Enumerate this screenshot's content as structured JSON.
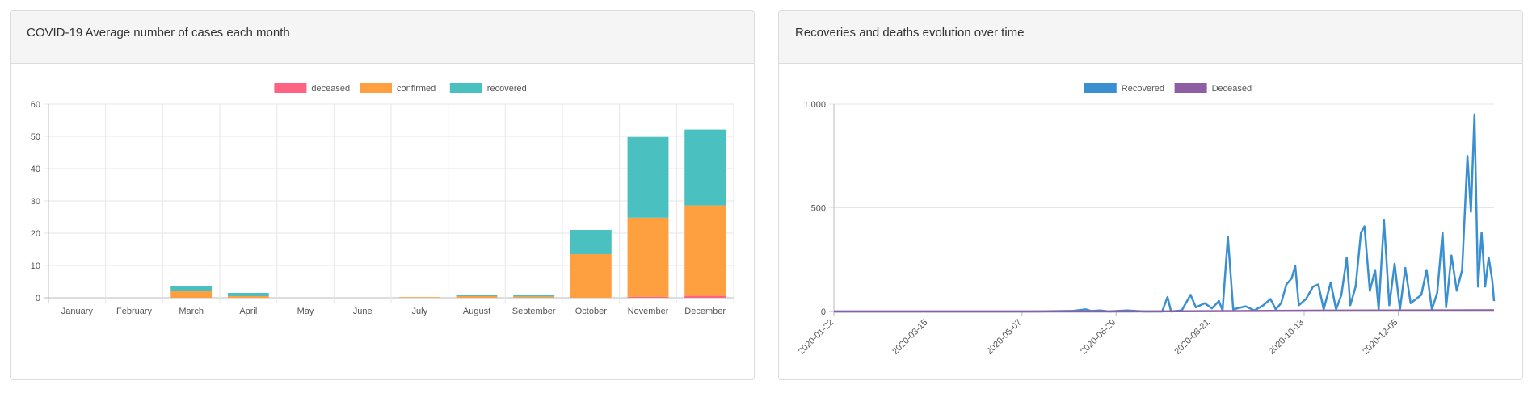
{
  "left_card": {
    "title": "COVID-19 Average number of cases each month"
  },
  "right_card": {
    "title": "Recoveries and deaths evolution over time"
  },
  "chart_data": [
    {
      "type": "bar",
      "stacked": true,
      "categories": [
        "January",
        "February",
        "March",
        "April",
        "May",
        "June",
        "July",
        "August",
        "September",
        "October",
        "November",
        "December"
      ],
      "series": [
        {
          "name": "deceased",
          "color": "#ff6384",
          "values": [
            0,
            0,
            0,
            0,
            0,
            0,
            0,
            0,
            0,
            0,
            0.3,
            0.6
          ]
        },
        {
          "name": "confirmed",
          "color": "#ffa040",
          "values": [
            0,
            0,
            2,
            0.5,
            0,
            0,
            0.2,
            0.5,
            0.4,
            13.5,
            24.5,
            28
          ]
        },
        {
          "name": "recovered",
          "color": "#4bc0c0",
          "values": [
            0,
            0,
            1.5,
            1,
            0,
            0,
            0,
            0.5,
            0.5,
            7.5,
            25,
            23.5
          ]
        }
      ],
      "ylim": [
        0,
        60
      ],
      "yticks": [
        0,
        10,
        20,
        30,
        40,
        50,
        60
      ],
      "legend": "top",
      "grid": true
    },
    {
      "type": "line",
      "x_dates": [
        "2020-01-22",
        "2020-03-15",
        "2020-05-07",
        "2020-06-29",
        "2020-08-21",
        "2020-10-13",
        "2020-12-05"
      ],
      "x_tick_labels": [
        "2020-01-22",
        "2020-03-15",
        "2020-05-07",
        "2020-06-29",
        "2020-08-21",
        "2020-10-13",
        "2020-12-05"
      ],
      "x_range": [
        "2020-01-22",
        "2021-01-28"
      ],
      "ylim": [
        0,
        1000
      ],
      "yticks": [
        0,
        500,
        1000
      ],
      "ytick_labels": [
        "0",
        "500",
        "1,000"
      ],
      "legend": "top",
      "grid": true,
      "series": [
        {
          "name": "Recovered",
          "color": "#3a8fd0",
          "points": [
            [
              "2020-01-22",
              0
            ],
            [
              "2020-05-15",
              0
            ],
            [
              "2020-06-05",
              3
            ],
            [
              "2020-06-12",
              10
            ],
            [
              "2020-06-15",
              2
            ],
            [
              "2020-06-20",
              5
            ],
            [
              "2020-06-25",
              0
            ],
            [
              "2020-07-05",
              5
            ],
            [
              "2020-07-15",
              0
            ],
            [
              "2020-07-25",
              0
            ],
            [
              "2020-07-28",
              70
            ],
            [
              "2020-07-30",
              0
            ],
            [
              "2020-08-05",
              5
            ],
            [
              "2020-08-10",
              80
            ],
            [
              "2020-08-13",
              20
            ],
            [
              "2020-08-18",
              40
            ],
            [
              "2020-08-22",
              15
            ],
            [
              "2020-08-26",
              50
            ],
            [
              "2020-08-28",
              5
            ],
            [
              "2020-08-31",
              360
            ],
            [
              "2020-09-03",
              10
            ],
            [
              "2020-09-10",
              25
            ],
            [
              "2020-09-15",
              5
            ],
            [
              "2020-09-20",
              30
            ],
            [
              "2020-09-24",
              60
            ],
            [
              "2020-09-27",
              10
            ],
            [
              "2020-09-30",
              40
            ],
            [
              "2020-10-03",
              130
            ],
            [
              "2020-10-06",
              160
            ],
            [
              "2020-10-08",
              220
            ],
            [
              "2020-10-10",
              30
            ],
            [
              "2020-10-14",
              60
            ],
            [
              "2020-10-18",
              120
            ],
            [
              "2020-10-21",
              130
            ],
            [
              "2020-10-24",
              10
            ],
            [
              "2020-10-28",
              140
            ],
            [
              "2020-10-31",
              10
            ],
            [
              "2020-11-03",
              80
            ],
            [
              "2020-11-06",
              260
            ],
            [
              "2020-11-08",
              30
            ],
            [
              "2020-11-11",
              120
            ],
            [
              "2020-11-14",
              380
            ],
            [
              "2020-11-16",
              410
            ],
            [
              "2020-11-19",
              100
            ],
            [
              "2020-11-22",
              200
            ],
            [
              "2020-11-24",
              10
            ],
            [
              "2020-11-27",
              440
            ],
            [
              "2020-11-30",
              30
            ],
            [
              "2020-12-03",
              230
            ],
            [
              "2020-12-06",
              10
            ],
            [
              "2020-12-09",
              210
            ],
            [
              "2020-12-12",
              40
            ],
            [
              "2020-12-15",
              60
            ],
            [
              "2020-12-18",
              80
            ],
            [
              "2020-12-21",
              200
            ],
            [
              "2020-12-24",
              10
            ],
            [
              "2020-12-27",
              90
            ],
            [
              "2020-12-30",
              380
            ],
            [
              "2021-01-01",
              20
            ],
            [
              "2021-01-04",
              270
            ],
            [
              "2021-01-07",
              100
            ],
            [
              "2021-01-10",
              200
            ],
            [
              "2021-01-13",
              750
            ],
            [
              "2021-01-15",
              480
            ],
            [
              "2021-01-17",
              950
            ],
            [
              "2021-01-19",
              120
            ],
            [
              "2021-01-21",
              380
            ],
            [
              "2021-01-23",
              120
            ],
            [
              "2021-01-25",
              260
            ],
            [
              "2021-01-27",
              150
            ],
            [
              "2021-01-28",
              50
            ]
          ]
        },
        {
          "name": "Deceased",
          "color": "#8e5ea2",
          "points": [
            [
              "2020-01-22",
              0
            ],
            [
              "2020-07-01",
              0
            ],
            [
              "2020-09-01",
              2
            ],
            [
              "2020-10-15",
              4
            ],
            [
              "2020-12-01",
              5
            ],
            [
              "2021-01-28",
              6
            ]
          ]
        }
      ]
    }
  ]
}
